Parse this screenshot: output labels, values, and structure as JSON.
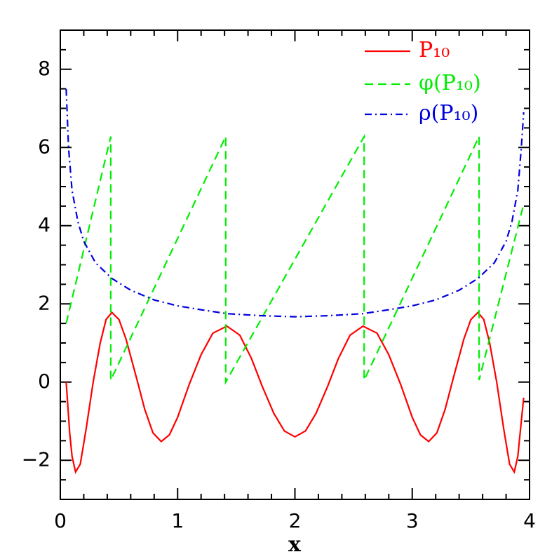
{
  "chart_data": {
    "type": "line",
    "xlabel": "x",
    "xlim": [
      0,
      4
    ],
    "ylim": [
      -3,
      9
    ],
    "xticks": [
      0,
      1,
      2,
      3,
      4
    ],
    "yticks": [
      {
        "value": -2,
        "label": "−2"
      },
      0,
      2,
      4,
      6,
      8
    ],
    "xminorticks": [
      0.2,
      0.4,
      0.6,
      0.8,
      1.2,
      1.4,
      1.6,
      1.8,
      2.2,
      2.4,
      2.6,
      2.8,
      3.2,
      3.4,
      3.6,
      3.8
    ],
    "yminorticks": [
      -2.5,
      -1.5,
      -1,
      -0.5,
      0.5,
      1,
      1.5,
      2.5,
      3,
      3.5,
      4.5,
      5,
      5.5,
      6.5,
      7,
      7.5,
      8.5
    ],
    "legend": "upper right",
    "series": [
      {
        "name": "P₁₀",
        "color": "#ff0000",
        "linestyle": "solid",
        "x": [
          0.05,
          0.08,
          0.1,
          0.13,
          0.17,
          0.22,
          0.28,
          0.34,
          0.39,
          0.44,
          0.5,
          0.56,
          0.65,
          0.72,
          0.79,
          0.86,
          0.93,
          1.0,
          1.1,
          1.2,
          1.3,
          1.42,
          1.53,
          1.63,
          1.72,
          1.82,
          1.91,
          2.0,
          2.09,
          2.18,
          2.28,
          2.37,
          2.47,
          2.58,
          2.7,
          2.8,
          2.9,
          3.0,
          3.07,
          3.14,
          3.21,
          3.28,
          3.35,
          3.44,
          3.5,
          3.56,
          3.61,
          3.66,
          3.72,
          3.78,
          3.83,
          3.87,
          3.9,
          3.93,
          3.95
        ],
        "values": [
          0,
          -1.3,
          -1.9,
          -2.3,
          -2.1,
          -1.2,
          0,
          1.0,
          1.6,
          1.78,
          1.6,
          1.1,
          0.1,
          -0.7,
          -1.3,
          -1.52,
          -1.35,
          -0.9,
          -0.05,
          0.7,
          1.25,
          1.43,
          1.2,
          0.6,
          -0.1,
          -0.8,
          -1.25,
          -1.4,
          -1.25,
          -0.8,
          -0.1,
          0.6,
          1.2,
          1.43,
          1.25,
          0.7,
          -0.05,
          -0.9,
          -1.35,
          -1.52,
          -1.3,
          -0.7,
          0.1,
          1.1,
          1.6,
          1.78,
          1.6,
          1.0,
          0,
          -1.2,
          -2.1,
          -2.3,
          -1.9,
          -1.0,
          -0.4
        ]
      },
      {
        "name": "φ(P₁₀)",
        "color": "#00ee00",
        "linestyle": "dashed",
        "x": [
          0.05,
          0.43,
          0.43,
          1.41,
          1.41,
          2.59,
          2.59,
          3.57,
          3.57,
          3.95
        ],
        "values": [
          1.5,
          6.28,
          0.05,
          6.28,
          0.0,
          6.28,
          0.05,
          6.28,
          0.05,
          4.55
        ]
      },
      {
        "name": "ρ(P₁₀)",
        "color": "#0000dd",
        "linestyle": "dashdot",
        "x": [
          0.05,
          0.07,
          0.1,
          0.15,
          0.2,
          0.3,
          0.44,
          0.6,
          0.8,
          1.0,
          1.2,
          1.42,
          1.7,
          2.0,
          2.3,
          2.58,
          2.8,
          3.0,
          3.2,
          3.4,
          3.56,
          3.7,
          3.8,
          3.85,
          3.9,
          3.93,
          3.95
        ],
        "values": [
          7.5,
          6.0,
          4.9,
          4.1,
          3.6,
          3.05,
          2.65,
          2.35,
          2.1,
          1.95,
          1.85,
          1.75,
          1.7,
          1.67,
          1.7,
          1.75,
          1.85,
          1.95,
          2.1,
          2.35,
          2.65,
          3.05,
          3.6,
          4.1,
          4.9,
          6.0,
          6.9
        ]
      }
    ]
  }
}
